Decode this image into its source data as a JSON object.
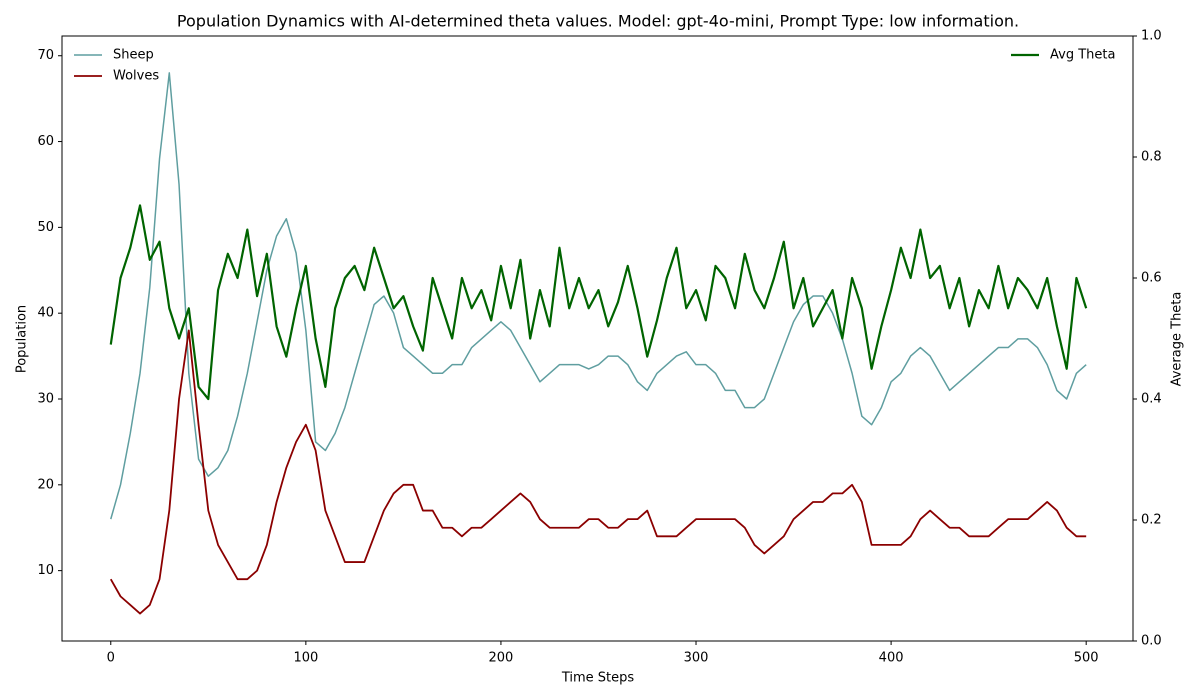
{
  "chart_data": {
    "type": "line",
    "title": "Population Dynamics with AI-determined theta values. Model: gpt-4o-mini, Prompt Type: low information.",
    "xlabel": "Time Steps",
    "ylabel": "Population",
    "y2label": "Average Theta",
    "xlim": [
      -25,
      524
    ],
    "ylim": [
      1.8,
      72.3
    ],
    "y2lim": [
      0,
      1
    ],
    "xticks": [
      0,
      100,
      200,
      300,
      400,
      500
    ],
    "yticks": [
      10,
      20,
      30,
      40,
      50,
      60,
      70
    ],
    "y2ticks": [
      {
        "value": 0,
        "label": "0.0"
      },
      0.2,
      0.4,
      0.6,
      0.8,
      {
        "value": 1,
        "label": "1.0"
      }
    ],
    "legend": "upper left",
    "legend2": "upper right",
    "x": [
      0,
      5,
      10,
      15,
      20,
      25,
      30,
      35,
      40,
      45,
      50,
      55,
      60,
      65,
      70,
      75,
      80,
      85,
      90,
      95,
      100,
      105,
      110,
      115,
      120,
      125,
      130,
      135,
      140,
      145,
      150,
      155,
      160,
      165,
      170,
      175,
      180,
      185,
      190,
      195,
      200,
      205,
      210,
      215,
      220,
      225,
      230,
      235,
      240,
      245,
      250,
      255,
      260,
      265,
      270,
      275,
      280,
      285,
      290,
      295,
      300,
      305,
      310,
      315,
      320,
      325,
      330,
      335,
      340,
      345,
      350,
      355,
      360,
      365,
      370,
      375,
      380,
      385,
      390,
      395,
      400,
      405,
      410,
      415,
      420,
      425,
      430,
      435,
      440,
      445,
      450,
      455,
      460,
      465,
      470,
      475,
      480,
      485,
      490,
      495,
      500
    ],
    "series": [
      {
        "name": "Sheep",
        "color": "#5f9ea0",
        "axis": "y",
        "width": 1.5,
        "values": [
          16,
          20,
          26,
          33,
          43,
          58,
          68,
          55,
          33,
          23,
          21,
          22,
          24,
          28,
          33,
          39,
          45,
          49,
          51,
          47,
          38,
          25,
          24,
          26,
          29,
          33,
          37,
          41,
          42,
          40,
          36,
          35,
          34,
          33,
          33,
          34,
          34,
          36,
          37,
          38,
          39,
          38,
          36,
          34,
          32,
          33,
          34,
          34,
          34,
          33.5,
          34,
          35,
          35,
          34,
          32,
          31,
          33,
          34,
          35,
          35.5,
          34,
          34,
          33,
          31,
          31,
          29,
          29,
          30,
          33,
          36,
          39,
          41,
          42,
          42,
          40,
          37,
          33,
          28,
          27,
          29,
          32,
          33,
          35,
          36,
          35,
          33,
          31,
          32,
          33,
          34,
          35,
          36,
          36,
          37,
          37,
          36,
          34,
          31,
          30,
          33,
          34
        ]
      },
      {
        "name": "Wolves",
        "color": "#8b0000",
        "axis": "y",
        "width": 1.8,
        "values": [
          9,
          7,
          6,
          5,
          6,
          9,
          17,
          30,
          38,
          27,
          17,
          13,
          11,
          9,
          9,
          10,
          13,
          18,
          22,
          25,
          27,
          24,
          17,
          14,
          11,
          11,
          11,
          14,
          17,
          19,
          20,
          20,
          17,
          17,
          15,
          15,
          14,
          15,
          15,
          16,
          17,
          18,
          19,
          18,
          16,
          15,
          15,
          15,
          15,
          16,
          16,
          15,
          15,
          16,
          16,
          17,
          14,
          14,
          14,
          15,
          16,
          16,
          16,
          16,
          16,
          15,
          13,
          12,
          13,
          14,
          16,
          17,
          18,
          18,
          19,
          19,
          20,
          18,
          13,
          13,
          13,
          13,
          14,
          16,
          17,
          16,
          15,
          15,
          14,
          14,
          14,
          15,
          16,
          16,
          16,
          17,
          18,
          17,
          15,
          14,
          14
        ]
      },
      {
        "name": "Avg Theta",
        "color": "#006400",
        "axis": "y2",
        "width": 2.2,
        "values": [
          0.49,
          0.6,
          0.65,
          0.72,
          0.63,
          0.66,
          0.55,
          0.5,
          0.55,
          0.42,
          0.4,
          0.58,
          0.64,
          0.6,
          0.68,
          0.57,
          0.64,
          0.52,
          0.47,
          0.55,
          0.62,
          0.5,
          0.42,
          0.55,
          0.6,
          0.62,
          0.58,
          0.65,
          0.6,
          0.55,
          0.57,
          0.52,
          0.48,
          0.6,
          0.55,
          0.5,
          0.6,
          0.55,
          0.58,
          0.53,
          0.62,
          0.55,
          0.63,
          0.5,
          0.58,
          0.52,
          0.65,
          0.55,
          0.6,
          0.55,
          0.58,
          0.52,
          0.56,
          0.62,
          0.55,
          0.47,
          0.53,
          0.6,
          0.65,
          0.55,
          0.58,
          0.53,
          0.62,
          0.6,
          0.55,
          0.64,
          0.58,
          0.55,
          0.6,
          0.66,
          0.55,
          0.6,
          0.52,
          0.55,
          0.58,
          0.5,
          0.6,
          0.55,
          0.45,
          0.52,
          0.58,
          0.65,
          0.6,
          0.68,
          0.6,
          0.62,
          0.55,
          0.6,
          0.52,
          0.58,
          0.55,
          0.62,
          0.55,
          0.6,
          0.58,
          0.55,
          0.6,
          0.52,
          0.45,
          0.6,
          0.55
        ]
      }
    ]
  }
}
